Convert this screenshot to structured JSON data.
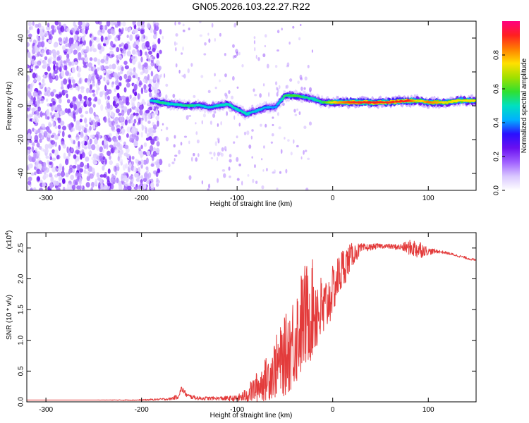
{
  "title": "GN05.2026.103.22.27.R22",
  "colors": {
    "frame": "#000000",
    "snr_line": "#e33b3b",
    "colormap": [
      "#ffffff",
      "#d9c7ff",
      "#a060ff",
      "#6a10f0",
      "#2a10ff",
      "#00b0ff",
      "#00e0c0",
      "#30e030",
      "#a0e000",
      "#ffe000",
      "#ff8000",
      "#ff2020",
      "#ff0080"
    ]
  },
  "chart_data": [
    {
      "type": "heatmap",
      "title": "",
      "xlabel": "Height of straight line (km)",
      "ylabel": "Frequency (Hz)",
      "xlim": [
        -320,
        150
      ],
      "ylim": [
        -50,
        50
      ],
      "xticks": [
        "-300",
        "-200",
        "-100",
        "0",
        "100"
      ],
      "xtick_values": [
        -300,
        -200,
        -100,
        0,
        100
      ],
      "yticks": [
        "-40",
        "-20",
        "0",
        "20",
        "40"
      ],
      "ytick_values": [
        -40,
        -20,
        0,
        20,
        40
      ],
      "colorbar": {
        "label": "Normalized spectral amplitude",
        "range": [
          0,
          1
        ],
        "ticks": [
          "0.0",
          "0.2",
          "0.4",
          "0.6",
          "0.8"
        ],
        "tick_values": [
          0,
          0.2,
          0.4,
          0.6,
          0.8
        ]
      },
      "noise_region": {
        "x": [
          -320,
          -180
        ],
        "freq": [
          -50,
          50
        ],
        "amplitude": 0.3
      },
      "ridge": {
        "x": [
          -190,
          -180,
          -170,
          -160,
          -150,
          -140,
          -130,
          -120,
          -110,
          -100,
          -90,
          -80,
          -70,
          -60,
          -50,
          -40,
          -30,
          -20,
          -10,
          0,
          20,
          40,
          60,
          80,
          90,
          100,
          110,
          120,
          130,
          150
        ],
        "freq": [
          3,
          2,
          1,
          0.5,
          0,
          0.5,
          -1,
          0,
          1,
          -2,
          -5,
          -3,
          -1,
          -1,
          6,
          6,
          5,
          4,
          2,
          2,
          2,
          2,
          2,
          3,
          3,
          2,
          2,
          2,
          3,
          3
        ],
        "amplitude": [
          0.45,
          0.55,
          0.5,
          0.5,
          0.55,
          0.5,
          0.45,
          0.5,
          0.5,
          0.5,
          0.5,
          0.45,
          0.45,
          0.4,
          0.55,
          0.6,
          0.55,
          0.5,
          0.55,
          0.75,
          0.9,
          0.92,
          0.9,
          0.92,
          0.7,
          0.85,
          0.8,
          0.72,
          0.75,
          0.75
        ]
      }
    },
    {
      "type": "line",
      "title": "",
      "xlabel": "Height of straight line (km)",
      "ylabel": "SNR (10 * v/v)",
      "yscale_label": "(x10",
      "yscale_exponent": "4",
      "yscale_suffix": ")",
      "xlim": [
        -320,
        150
      ],
      "ylim": [
        0,
        2.75
      ],
      "xticks": [
        "-300",
        "-200",
        "-100",
        "0",
        "100"
      ],
      "xtick_values": [
        -300,
        -200,
        -100,
        0,
        100
      ],
      "yticks": [
        "0.0",
        "0.5",
        "1.0",
        "1.5",
        "2.0",
        "2.5"
      ],
      "ytick_values": [
        0,
        0.5,
        1,
        1.5,
        2,
        2.5
      ],
      "series": [
        {
          "x": [
            -320,
            -250,
            -200,
            -170,
            -162,
            -158,
            -152,
            -140,
            -120,
            -100,
            -90,
            -80,
            -70,
            -60,
            -50,
            -40,
            -30,
            -20,
            -10,
            0,
            10,
            20,
            30,
            40,
            50,
            60,
            70,
            80,
            90,
            95,
            100,
            110,
            120,
            130,
            140,
            150
          ],
          "y": [
            0.03,
            0.03,
            0.03,
            0.05,
            0.09,
            0.22,
            0.1,
            0.06,
            0.06,
            0.06,
            0.12,
            0.25,
            0.4,
            0.6,
            0.8,
            1.1,
            1.45,
            1.6,
            1.5,
            1.85,
            2.2,
            2.4,
            2.5,
            2.52,
            2.54,
            2.53,
            2.52,
            2.52,
            2.5,
            2.48,
            2.45,
            2.45,
            2.42,
            2.38,
            2.34,
            2.3
          ],
          "noise": [
            0,
            0,
            0.01,
            0.02,
            0.04,
            0.05,
            0.04,
            0.03,
            0.03,
            0.05,
            0.12,
            0.25,
            0.35,
            0.5,
            0.65,
            0.8,
            0.9,
            0.8,
            0.55,
            0.4,
            0.35,
            0.2,
            0.08,
            0.05,
            0.04,
            0.04,
            0.05,
            0.12,
            0.18,
            0.1,
            0.06,
            0.03,
            0.02,
            0.02,
            0.02,
            0.02
          ]
        }
      ]
    }
  ]
}
